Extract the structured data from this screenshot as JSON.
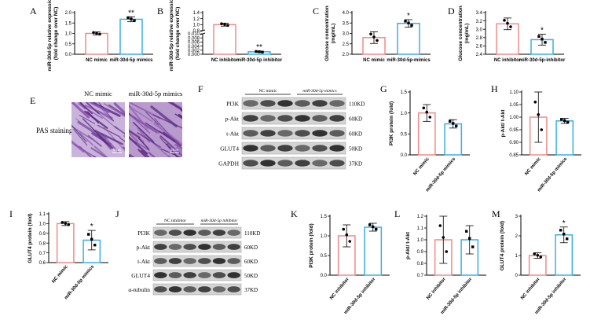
{
  "colors": {
    "nc": "#f08a8a",
    "treat": "#3aaee8",
    "axis": "#000000",
    "pas": "#8a55b0",
    "pas_dark": "#5b2a86"
  },
  "bar_panels": [
    {
      "letter": "A",
      "ylabel": [
        "miR-30d-5p relative expression",
        "(fold change over NC)"
      ],
      "yticks": [
        "0.0",
        "0.5",
        "1.0",
        "1.5",
        "2.0"
      ],
      "categories": [
        "NC mimic",
        "miR-30d-5p mimics"
      ],
      "values": [
        1.0,
        1.68
      ],
      "errors": [
        0.07,
        0.12
      ],
      "sig": [
        "",
        "**"
      ],
      "rotate": false
    },
    {
      "letter": "B",
      "ylabel": [
        "miR-30d-5p relative expression",
        "(fold change over NC)"
      ],
      "yticks_upper": [
        "0.8",
        "1.0",
        "1.2",
        "1.4"
      ],
      "yticks_lower": [
        "0.000",
        "0.002",
        "0.004",
        "0.006",
        "0.008",
        "0.010"
      ],
      "categories": [
        "NC inhibitor",
        "miR-30d-5p inhibitor"
      ],
      "values": [
        1.0,
        0.0012
      ],
      "errors": [
        0.05,
        0.0003
      ],
      "sig": [
        "",
        "**"
      ],
      "rotate": false
    },
    {
      "letter": "C",
      "ylabel": [
        "Glucose concentration",
        "(mg/mL)"
      ],
      "yticks": [
        "2.0",
        "2.5",
        "3.0",
        "3.5",
        "4.0"
      ],
      "categories": [
        "NC mimic",
        "miR-30d-5p-mimics"
      ],
      "values": [
        2.8,
        3.48
      ],
      "errors": [
        0.28,
        0.18
      ],
      "sig": [
        "",
        "*"
      ],
      "rotate": false
    },
    {
      "letter": "D",
      "ylabel": [
        "Glucose concentration",
        "(mg/mL)"
      ],
      "yticks": [
        "2.4",
        "2.6",
        "2.8",
        "3.0",
        "3.2",
        "3.4"
      ],
      "categories": [
        "NC inhibitor",
        "miR-30d-5p-inhibitor"
      ],
      "values": [
        3.13,
        2.75
      ],
      "errors": [
        0.14,
        0.13
      ],
      "sig": [
        "",
        "*"
      ],
      "rotate": false
    },
    {
      "letter": "G",
      "ylabel": [
        "PI3K protein (fold)"
      ],
      "yticks": [
        "0.0",
        "0.5",
        "1.0",
        "1.5"
      ],
      "categories": [
        "NC mimic",
        "miR-30d-5p mimics"
      ],
      "values": [
        1.0,
        0.74
      ],
      "errors": [
        0.2,
        0.1
      ],
      "sig": [
        "",
        ""
      ],
      "rotate": true
    },
    {
      "letter": "H",
      "ylabel": [
        "p-Akt/ t-Akt"
      ],
      "yticks": [
        "0.85",
        "0.90",
        "0.95",
        "1.00",
        "1.05",
        "1.10"
      ],
      "categories": [
        "NC mimic",
        "miR-30d-5p mimics"
      ],
      "values": [
        1.0,
        0.985
      ],
      "errors": [
        0.1,
        0.01
      ],
      "sig": [
        "",
        ""
      ],
      "rotate": true
    },
    {
      "letter": "I",
      "ylabel": [
        "GLUT4 protein (fold)"
      ],
      "yticks": [
        "0.6",
        "0.7",
        "0.8",
        "0.9",
        "1.0",
        "1.1"
      ],
      "categories": [
        "NC mimic",
        "miR-30d-5p mimics"
      ],
      "values": [
        1.0,
        0.83
      ],
      "errors": [
        0.02,
        0.1
      ],
      "sig": [
        "",
        "*"
      ],
      "rotate": true
    },
    {
      "letter": "K",
      "ylabel": [
        "PI3K protein (fold)"
      ],
      "yticks": [
        "0.0",
        "0.5",
        "1.0",
        "1.5"
      ],
      "categories": [
        "NC inhibitor",
        "miR-30d-5p inhibitor"
      ],
      "values": [
        1.0,
        1.22
      ],
      "errors": [
        0.28,
        0.1
      ],
      "sig": [
        "",
        ""
      ],
      "rotate": true
    },
    {
      "letter": "L",
      "ylabel": [
        "p-Akt/ t-Akt"
      ],
      "yticks": [
        "0.7",
        "0.8",
        "0.9",
        "1.0",
        "1.1",
        "1.2"
      ],
      "categories": [
        "NC inhibitor",
        "miR-30d-5p inhibitor"
      ],
      "values": [
        1.0,
        1.0
      ],
      "errors": [
        0.2,
        0.12
      ],
      "sig": [
        "",
        ""
      ],
      "rotate": true
    },
    {
      "letter": "M",
      "ylabel": [
        "GLUT4 protein (fold)"
      ],
      "yticks": [
        "0",
        "1",
        "2",
        "3"
      ],
      "categories": [
        "NC inhibitor",
        "miR-30d-5p inhibitor"
      ],
      "values": [
        1.0,
        2.05
      ],
      "errors": [
        0.14,
        0.4
      ],
      "sig": [
        "",
        "*"
      ],
      "rotate": true
    }
  ],
  "panel_e": {
    "letter": "E",
    "row_label": "PAS staining",
    "titles": [
      "NC mimic",
      "miR-30d-5p mimics"
    ],
    "scale": "50μm"
  },
  "blot_panels": [
    {
      "letter": "F",
      "groups": [
        "NC mimic",
        "miR-30d-5p mimics"
      ],
      "rows": [
        {
          "protein": "PI3K",
          "size": "110KD"
        },
        {
          "protein": "p-Akt",
          "size": "60KD"
        },
        {
          "protein": "t-Akt",
          "size": "60KD"
        },
        {
          "protein": "GLUT4",
          "size": "50KD"
        },
        {
          "protein": "GAPDH",
          "size": "37KD"
        }
      ]
    },
    {
      "letter": "J",
      "groups": [
        "NC inhibitor",
        "miR-30d-5p inhibitor"
      ],
      "rows": [
        {
          "protein": "PI3K",
          "size": "110KD"
        },
        {
          "protein": "p-Akt",
          "size": "60KD"
        },
        {
          "protein": "t-Akt",
          "size": "60KD"
        },
        {
          "protein": "GLUT4",
          "size": "50KD"
        },
        {
          "protein": "α-tubulin",
          "size": "37KD"
        }
      ]
    }
  ]
}
